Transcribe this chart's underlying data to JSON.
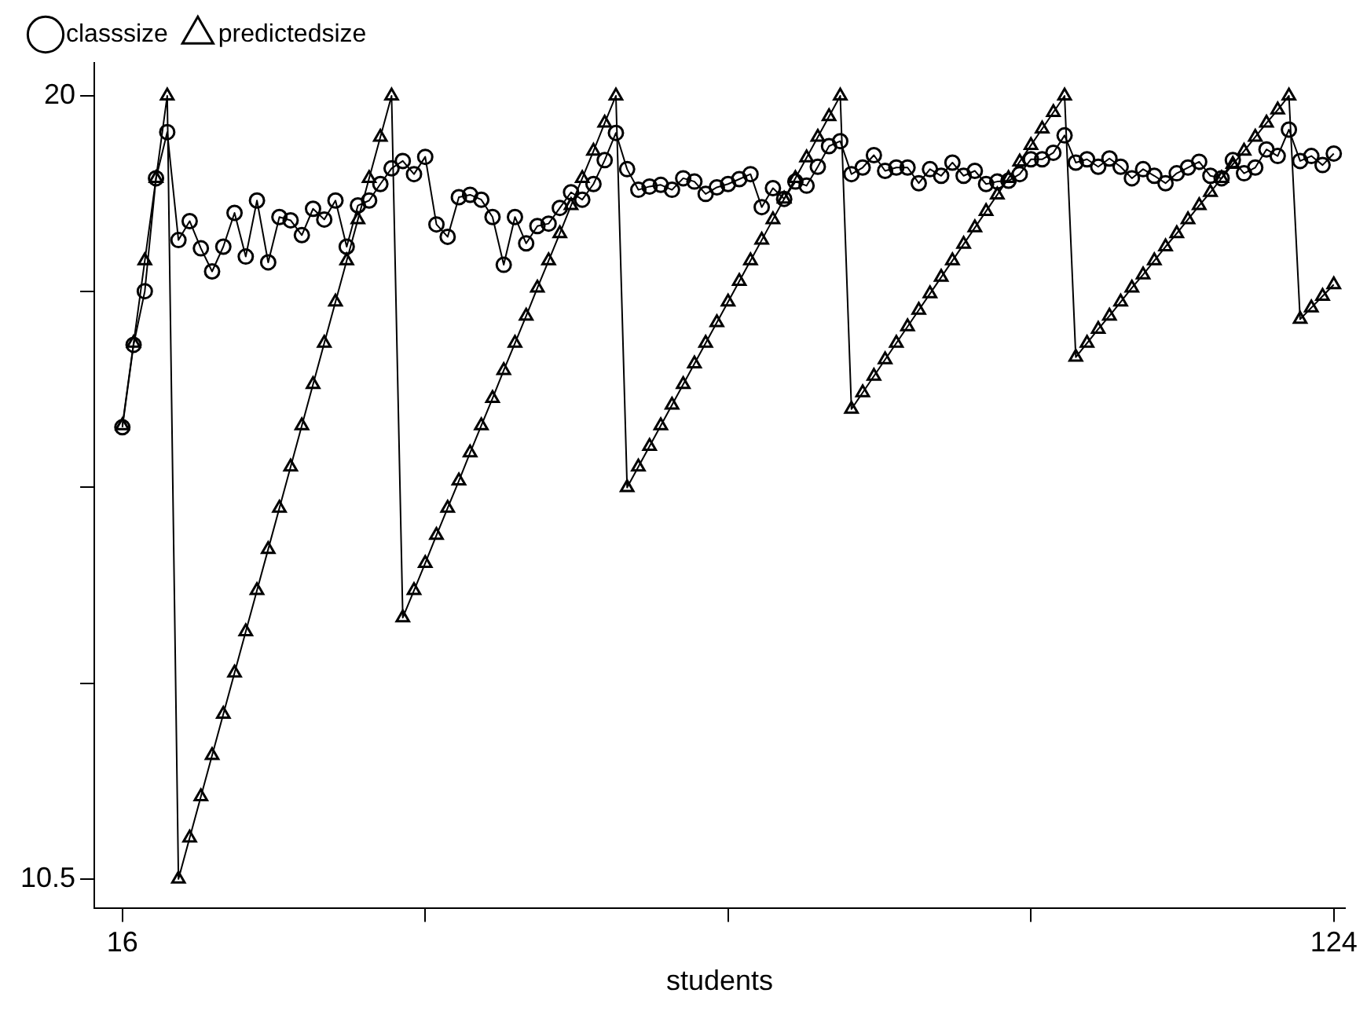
{
  "chart_data": {
    "type": "line",
    "xlabel": "students",
    "x": [
      16,
      17,
      18,
      19,
      20,
      21,
      22,
      23,
      24,
      25,
      26,
      27,
      28,
      29,
      30,
      31,
      32,
      33,
      34,
      35,
      36,
      37,
      38,
      39,
      40,
      41,
      42,
      43,
      44,
      45,
      46,
      47,
      48,
      49,
      50,
      51,
      52,
      53,
      54,
      55,
      56,
      57,
      58,
      59,
      60,
      61,
      62,
      63,
      64,
      65,
      66,
      67,
      68,
      69,
      70,
      71,
      72,
      73,
      74,
      75,
      76,
      77,
      78,
      79,
      80,
      81,
      82,
      83,
      84,
      85,
      86,
      87,
      88,
      89,
      90,
      91,
      92,
      93,
      94,
      95,
      96,
      97,
      98,
      99,
      100,
      101,
      102,
      103,
      104,
      105,
      106,
      107,
      108,
      109,
      110,
      111,
      112,
      113,
      114,
      115,
      116,
      117,
      118,
      119,
      120,
      121,
      122,
      123,
      124
    ],
    "series": [
      {
        "name": "classsize",
        "color": "#000000",
        "marker": "circle",
        "values": [
          15.98,
          16.98,
          17.63,
          19.0,
          19.56,
          18.25,
          18.48,
          18.15,
          17.87,
          18.17,
          18.58,
          18.05,
          18.73,
          17.98,
          18.53,
          18.49,
          18.31,
          18.63,
          18.5,
          18.73,
          18.17,
          18.67,
          18.73,
          18.93,
          19.12,
          19.21,
          19.05,
          19.26,
          18.44,
          18.29,
          18.77,
          18.8,
          18.74,
          18.53,
          17.95,
          18.53,
          18.21,
          18.42,
          18.45,
          18.64,
          18.83,
          18.74,
          18.93,
          19.22,
          19.55,
          19.11,
          18.86,
          18.9,
          18.92,
          18.86,
          19.0,
          18.96,
          18.81,
          18.89,
          18.93,
          18.99,
          19.05,
          18.65,
          18.88,
          18.75,
          18.96,
          18.91,
          19.14,
          19.39,
          19.45,
          19.05,
          19.13,
          19.28,
          19.09,
          19.13,
          19.13,
          18.94,
          19.11,
          19.03,
          19.19,
          19.03,
          19.09,
          18.93,
          18.96,
          18.97,
          19.05,
          19.23,
          19.23,
          19.31,
          19.52,
          19.19,
          19.23,
          19.14,
          19.24,
          19.14,
          19.0,
          19.11,
          19.03,
          18.94,
          19.06,
          19.13,
          19.2,
          19.03,
          19.0,
          19.22,
          19.06,
          19.13,
          19.35,
          19.27,
          19.59,
          19.21,
          19.27,
          19.16,
          19.3
        ]
      },
      {
        "name": "predictedsize",
        "color": "#000000",
        "marker": "triangle",
        "values": [
          16,
          17,
          18,
          19,
          20,
          10.5,
          11,
          11.5,
          12,
          12.5,
          13,
          13.5,
          14,
          14.5,
          15,
          15.5,
          16,
          16.5,
          17,
          17.5,
          18,
          18.5,
          19,
          19.5,
          20,
          13.67,
          14,
          14.33,
          14.67,
          15,
          15.33,
          15.67,
          16,
          16.33,
          16.67,
          17,
          17.33,
          17.67,
          18,
          18.33,
          18.67,
          19,
          19.33,
          19.67,
          20,
          15.25,
          15.5,
          15.75,
          16,
          16.25,
          16.5,
          16.75,
          17,
          17.25,
          17.5,
          17.75,
          18,
          18.25,
          18.5,
          18.75,
          19,
          19.25,
          19.5,
          19.75,
          20,
          16.2,
          16.4,
          16.6,
          16.8,
          17,
          17.2,
          17.4,
          17.6,
          17.8,
          18,
          18.2,
          18.4,
          18.6,
          18.8,
          19,
          19.2,
          19.4,
          19.6,
          19.8,
          20,
          16.83,
          17,
          17.17,
          17.33,
          17.5,
          17.67,
          17.83,
          18,
          18.17,
          18.33,
          18.5,
          18.67,
          18.83,
          19,
          19.17,
          19.33,
          19.5,
          19.67,
          19.83,
          20,
          17.29,
          17.43,
          17.57,
          17.71
        ]
      }
    ],
    "xlim": [
      13.5,
      125
    ],
    "xticks": [
      16,
      {
        "value": 43,
        "label": null
      },
      {
        "value": 70,
        "label": null
      },
      {
        "value": 97,
        "label": null
      },
      124
    ],
    "ylim": [
      10.15,
      20.4
    ],
    "yticks": [
      10.5,
      {
        "value": 12.875,
        "label": null
      },
      {
        "value": 15.25,
        "label": null
      },
      {
        "value": 17.625,
        "label": null
      },
      20
    ],
    "grid": false,
    "legend": "top left",
    "line_style": "solid"
  }
}
